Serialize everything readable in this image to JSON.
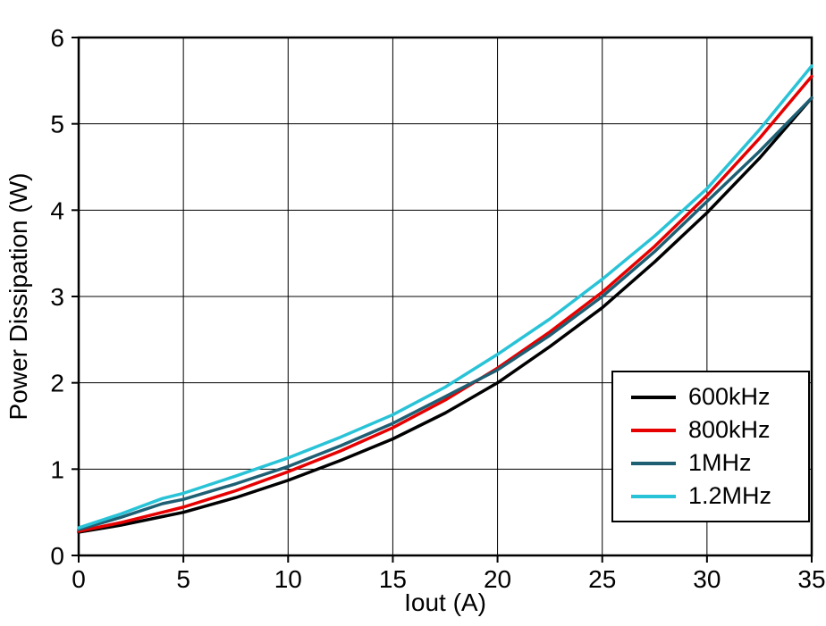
{
  "chart_data": {
    "type": "line",
    "title": "",
    "xlabel": "Iout (A)",
    "ylabel": "Power Dissipation (W)",
    "xlim": [
      0,
      35
    ],
    "ylim": [
      0,
      6
    ],
    "xticks": [
      0,
      5,
      10,
      15,
      20,
      25,
      30,
      35
    ],
    "xtick_labels": [
      "0",
      "5",
      "10",
      "15",
      "20",
      "25",
      "30",
      "35"
    ],
    "yticks": [
      0,
      1,
      2,
      3,
      4,
      5,
      6
    ],
    "ytick_labels": [
      "0",
      "1",
      "2",
      "3",
      "4",
      "5",
      "6"
    ],
    "grid": true,
    "legend_position": "bottom-right",
    "axis_color": "#000000",
    "grid_color": "#000000",
    "x": [
      0,
      2,
      4,
      5,
      7.5,
      10,
      12.5,
      15,
      17.5,
      20,
      22.5,
      25,
      27.5,
      30,
      32.5,
      35
    ],
    "series": [
      {
        "name": "600kHz",
        "color": "#000000",
        "values": [
          0.27,
          0.35,
          0.45,
          0.5,
          0.67,
          0.87,
          1.1,
          1.35,
          1.65,
          2.0,
          2.42,
          2.87,
          3.4,
          3.97,
          4.6,
          5.3
        ]
      },
      {
        "name": "800kHz",
        "color": "#e60000",
        "values": [
          0.28,
          0.38,
          0.5,
          0.56,
          0.75,
          0.97,
          1.21,
          1.48,
          1.8,
          2.17,
          2.59,
          3.05,
          3.58,
          4.17,
          4.83,
          5.55
        ]
      },
      {
        "name": "1MHz",
        "color": "#1e5f74",
        "values": [
          0.3,
          0.44,
          0.6,
          0.65,
          0.83,
          1.03,
          1.27,
          1.53,
          1.84,
          2.15,
          2.55,
          3.0,
          3.52,
          4.1,
          4.68,
          5.3
        ]
      },
      {
        "name": "1.2MHz",
        "color": "#29c3d7",
        "values": [
          0.32,
          0.48,
          0.66,
          0.72,
          0.92,
          1.13,
          1.37,
          1.63,
          1.95,
          2.33,
          2.74,
          3.2,
          3.7,
          4.25,
          4.93,
          5.67
        ]
      }
    ]
  }
}
